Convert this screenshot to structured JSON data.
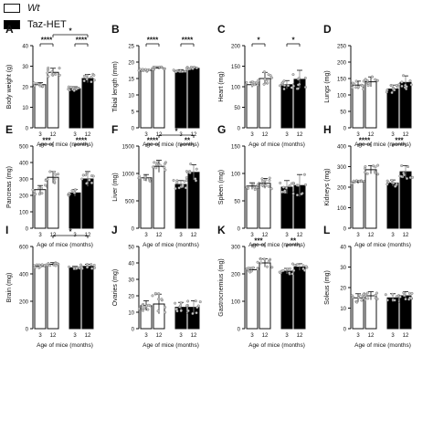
{
  "legend": [
    {
      "name": "Wt",
      "fill": "#ffffff"
    },
    {
      "name": "Taz-HET",
      "fill": "#000000"
    }
  ],
  "colors": {
    "bar_stroke": "#111111",
    "wt_fill": "#ffffff",
    "het_fill": "#000000",
    "point_fill": "#c8c8c8",
    "point_stroke": "#555555"
  },
  "chart_data": [
    {
      "panel": "A",
      "type": "bar",
      "xlabel": "Age of mice (months)",
      "ylabel": "Body weight (g)",
      "ylim": [
        0,
        40
      ],
      "yticks": [
        0,
        10,
        20,
        30,
        40
      ],
      "categories": [
        "3",
        "12",
        "3",
        "12"
      ],
      "groups": [
        "Wt",
        "Wt",
        "Taz-HET",
        "Taz-HET"
      ],
      "values": [
        21,
        27,
        19,
        24
      ],
      "errors": [
        1,
        2,
        1,
        2
      ],
      "significance": [
        {
          "from": 0,
          "to": 1,
          "label": "****"
        },
        {
          "from": 2,
          "to": 3,
          "label": "****"
        },
        {
          "from": 1,
          "to": 3,
          "label": "*"
        }
      ]
    },
    {
      "panel": "B",
      "type": "bar",
      "xlabel": "Age of mice (months)",
      "ylabel": "Tibial length (mm)",
      "ylim": [
        0,
        25
      ],
      "yticks": [
        0,
        5,
        10,
        15,
        20,
        25
      ],
      "categories": [
        "3",
        "12",
        "3",
        "12"
      ],
      "groups": [
        "Wt",
        "Wt",
        "Taz-HET",
        "Taz-HET"
      ],
      "values": [
        17.5,
        18.2,
        17.4,
        18.1
      ],
      "errors": [
        0.3,
        0.4,
        0.3,
        0.4
      ],
      "significance": [
        {
          "from": 0,
          "to": 1,
          "label": "****"
        },
        {
          "from": 2,
          "to": 3,
          "label": "****"
        }
      ]
    },
    {
      "panel": "C",
      "type": "bar",
      "xlabel": "Age of mice (months)",
      "ylabel": "Heart (mg)",
      "ylim": [
        0,
        200
      ],
      "yticks": [
        0,
        50,
        100,
        150,
        200
      ],
      "categories": [
        "3",
        "12",
        "3",
        "12"
      ],
      "groups": [
        "Wt",
        "Wt",
        "Taz-HET",
        "Taz-HET"
      ],
      "values": [
        105,
        120,
        105,
        118
      ],
      "errors": [
        6,
        15,
        10,
        22
      ],
      "significance": [
        {
          "from": 0,
          "to": 1,
          "label": "*"
        },
        {
          "from": 2,
          "to": 3,
          "label": "*"
        }
      ]
    },
    {
      "panel": "D",
      "type": "bar",
      "xlabel": "Age of mice (months)",
      "ylabel": "Lungs (mg)",
      "ylim": [
        0,
        250
      ],
      "yticks": [
        0,
        50,
        100,
        150,
        200,
        250
      ],
      "categories": [
        "3",
        "12",
        "3",
        "12"
      ],
      "groups": [
        "Wt",
        "Wt",
        "Taz-HET",
        "Taz-HET"
      ],
      "values": [
        130,
        140,
        118,
        138
      ],
      "errors": [
        12,
        15,
        12,
        20
      ],
      "significance": []
    },
    {
      "panel": "E",
      "type": "bar",
      "xlabel": "Age of mice (months)",
      "ylabel": "Pancreas (mg)",
      "ylim": [
        0,
        500
      ],
      "yticks": [
        0,
        100,
        200,
        300,
        400,
        500
      ],
      "categories": [
        "3",
        "12",
        "3",
        "12"
      ],
      "groups": [
        "Wt",
        "Wt",
        "Taz-HET",
        "Taz-HET"
      ],
      "values": [
        235,
        310,
        215,
        300
      ],
      "errors": [
        25,
        35,
        20,
        45
      ],
      "significance": [
        {
          "from": 0,
          "to": 1,
          "label": "***"
        },
        {
          "from": 2,
          "to": 3,
          "label": "****"
        }
      ]
    },
    {
      "panel": "F",
      "type": "bar",
      "xlabel": "Age of mice (months)",
      "ylabel": "Liver (mg)",
      "ylim": [
        0,
        1500
      ],
      "yticks": [
        0,
        500,
        1000,
        1500
      ],
      "categories": [
        "3",
        "12",
        "3",
        "12"
      ],
      "groups": [
        "Wt",
        "Wt",
        "Taz-HET",
        "Taz-HET"
      ],
      "values": [
        920,
        1130,
        800,
        1020
      ],
      "errors": [
        60,
        110,
        70,
        140
      ],
      "significance": [
        {
          "from": 0,
          "to": 1,
          "label": "****"
        },
        {
          "from": 2,
          "to": 3,
          "label": "**"
        },
        {
          "from": 1,
          "to": 3,
          "label": "*"
        }
      ]
    },
    {
      "panel": "G",
      "type": "bar",
      "xlabel": "Age of mice (months)",
      "ylabel": "Spleen (mg)",
      "ylim": [
        0,
        150
      ],
      "yticks": [
        0,
        50,
        100,
        150
      ],
      "categories": [
        "3",
        "12",
        "3",
        "12"
      ],
      "groups": [
        "Wt",
        "Wt",
        "Taz-HET",
        "Taz-HET"
      ],
      "values": [
        77,
        82,
        75,
        78
      ],
      "errors": [
        6,
        9,
        12,
        20
      ],
      "significance": []
    },
    {
      "panel": "H",
      "type": "bar",
      "xlabel": "Age of mice (months)",
      "ylabel": "Kidneys (mg)",
      "ylim": [
        0,
        400
      ],
      "yticks": [
        0,
        100,
        200,
        300,
        400
      ],
      "categories": [
        "3",
        "12",
        "3",
        "12"
      ],
      "groups": [
        "Wt",
        "Wt",
        "Taz-HET",
        "Taz-HET"
      ],
      "values": [
        225,
        285,
        220,
        275
      ],
      "errors": [
        8,
        20,
        15,
        30
      ],
      "significance": [
        {
          "from": 0,
          "to": 1,
          "label": "****"
        },
        {
          "from": 2,
          "to": 3,
          "label": "***"
        }
      ]
    },
    {
      "panel": "I",
      "type": "bar",
      "xlabel": "Age of mice (months)",
      "ylabel": "Brain (mg)",
      "ylim": [
        0,
        600
      ],
      "yticks": [
        0,
        200,
        400,
        600
      ],
      "categories": [
        "3",
        "12",
        "3",
        "12"
      ],
      "groups": [
        "Wt",
        "Wt",
        "Taz-HET",
        "Taz-HET"
      ],
      "values": [
        455,
        470,
        445,
        455
      ],
      "errors": [
        12,
        12,
        10,
        15
      ],
      "significance": [
        {
          "from": 1,
          "to": 3,
          "label": "*"
        }
      ]
    },
    {
      "panel": "J",
      "type": "bar",
      "xlabel": "Age of mice (months)",
      "ylabel": "Ovaries (mg)",
      "ylim": [
        0,
        50
      ],
      "yticks": [
        0,
        10,
        20,
        30,
        40,
        50
      ],
      "categories": [
        "3",
        "12",
        "3",
        "12"
      ],
      "groups": [
        "Wt",
        "Wt",
        "Taz-HET",
        "Taz-HET"
      ],
      "values": [
        14,
        15,
        13,
        13
      ],
      "errors": [
        3,
        6,
        3,
        4
      ],
      "significance": []
    },
    {
      "panel": "K",
      "type": "bar",
      "xlabel": "Age of mice (months)",
      "ylabel": "Gastrocnemius (mg)",
      "ylim": [
        0,
        300
      ],
      "yticks": [
        0,
        100,
        200,
        300
      ],
      "categories": [
        "3",
        "12",
        "3",
        "12"
      ],
      "groups": [
        "Wt",
        "Wt",
        "Taz-HET",
        "Taz-HET"
      ],
      "values": [
        215,
        240,
        210,
        225
      ],
      "errors": [
        8,
        15,
        10,
        12
      ],
      "significance": [
        {
          "from": 0,
          "to": 1,
          "label": "***"
        },
        {
          "from": 2,
          "to": 3,
          "label": "**"
        }
      ]
    },
    {
      "panel": "L",
      "type": "bar",
      "xlabel": "Age of mice (months)",
      "ylabel": "Soleus (mg)",
      "ylim": [
        0,
        40
      ],
      "yticks": [
        0,
        10,
        20,
        30,
        40
      ],
      "categories": [
        "3",
        "12",
        "3",
        "12"
      ],
      "groups": [
        "Wt",
        "Wt",
        "Taz-HET",
        "Taz-HET"
      ],
      "values": [
        15,
        16,
        15,
        16
      ],
      "errors": [
        2,
        2,
        2,
        2
      ],
      "significance": []
    }
  ]
}
